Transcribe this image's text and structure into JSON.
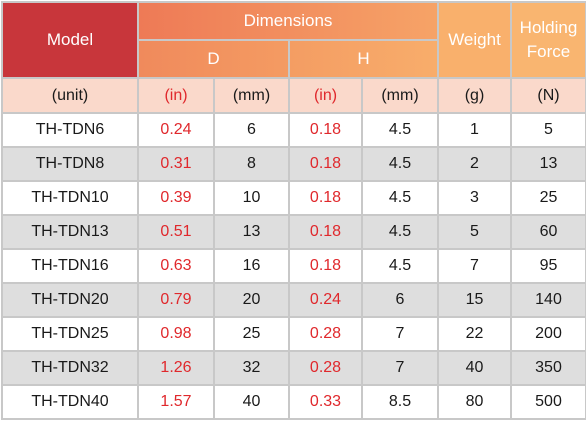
{
  "header": {
    "model": "Model",
    "dimensions": "Dimensions",
    "d": "D",
    "h": "H",
    "weight": "Weight",
    "holding_force_line1": "Holding",
    "holding_force_line2": "Force"
  },
  "units": {
    "model": "(unit)",
    "d_in": "(in)",
    "d_mm": "(mm)",
    "h_in": "(in)",
    "h_mm": "(mm)",
    "weight": "(g)",
    "force": "(N)"
  },
  "rows": [
    {
      "model": "TH-TDN6",
      "d_in": "0.24",
      "d_mm": "6",
      "h_in": "0.18",
      "h_mm": "4.5",
      "weight": "1",
      "force": "5"
    },
    {
      "model": "TH-TDN8",
      "d_in": "0.31",
      "d_mm": "8",
      "h_in": "0.18",
      "h_mm": "4.5",
      "weight": "2",
      "force": "13"
    },
    {
      "model": "TH-TDN10",
      "d_in": "0.39",
      "d_mm": "10",
      "h_in": "0.18",
      "h_mm": "4.5",
      "weight": "3",
      "force": "25"
    },
    {
      "model": "TH-TDN13",
      "d_in": "0.51",
      "d_mm": "13",
      "h_in": "0.18",
      "h_mm": "4.5",
      "weight": "5",
      "force": "60"
    },
    {
      "model": "TH-TDN16",
      "d_in": "0.63",
      "d_mm": "16",
      "h_in": "0.18",
      "h_mm": "4.5",
      "weight": "7",
      "force": "95"
    },
    {
      "model": "TH-TDN20",
      "d_in": "0.79",
      "d_mm": "20",
      "h_in": "0.24",
      "h_mm": "6",
      "weight": "15",
      "force": "140"
    },
    {
      "model": "TH-TDN25",
      "d_in": "0.98",
      "d_mm": "25",
      "h_in": "0.28",
      "h_mm": "7",
      "weight": "22",
      "force": "200"
    },
    {
      "model": "TH-TDN32",
      "d_in": "1.26",
      "d_mm": "32",
      "h_in": "0.28",
      "h_mm": "7",
      "weight": "40",
      "force": "350"
    },
    {
      "model": "TH-TDN40",
      "d_in": "1.57",
      "d_mm": "40",
      "h_in": "0.33",
      "h_mm": "8.5",
      "weight": "80",
      "force": "500"
    }
  ],
  "colors": {
    "model_header": "#c8363b",
    "dimensions_header": "#ee7a56",
    "unit_row": "#fad9cb",
    "inch_text": "#e0282c",
    "alt_row": "#dedede",
    "grid": "#c8c8c8"
  }
}
